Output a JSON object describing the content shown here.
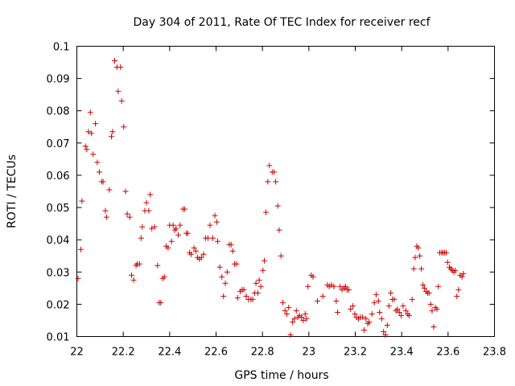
{
  "chart_data": {
    "type": "scatter",
    "title": "Day 304 of 2011, Rate Of TEC Index for receiver recf",
    "xlabel": "GPS time / hours",
    "ylabel": "ROTI / TECUs",
    "xlim": [
      22,
      23.8
    ],
    "ylim": [
      0.01,
      0.1
    ],
    "x_ticks": [
      "22",
      "22.2",
      "22.4",
      "22.6",
      "22.8",
      "23",
      "23.2",
      "23.4",
      "23.6",
      "23.8"
    ],
    "y_ticks": [
      "0.01",
      "0.02",
      "0.03",
      "0.04",
      "0.05",
      "0.06",
      "0.07",
      "0.08",
      "0.09",
      "0.1"
    ],
    "grid": false,
    "marker": "plus",
    "marker_color": "#cc0000",
    "points": [
      [
        22.005,
        0.028
      ],
      [
        22.017,
        0.037
      ],
      [
        22.022,
        0.052
      ],
      [
        22.037,
        0.069
      ],
      [
        22.043,
        0.068
      ],
      [
        22.05,
        0.0735
      ],
      [
        22.058,
        0.0795
      ],
      [
        22.063,
        0.073
      ],
      [
        22.07,
        0.0665
      ],
      [
        22.08,
        0.076
      ],
      [
        22.088,
        0.064
      ],
      [
        22.097,
        0.061
      ],
      [
        22.107,
        0.058
      ],
      [
        22.113,
        0.058
      ],
      [
        22.123,
        0.049
      ],
      [
        22.128,
        0.047
      ],
      [
        22.14,
        0.0555
      ],
      [
        22.149,
        0.072
      ],
      [
        22.154,
        0.0735
      ],
      [
        22.163,
        0.0955
      ],
      [
        22.173,
        0.0935
      ],
      [
        22.178,
        0.086
      ],
      [
        22.188,
        0.0935
      ],
      [
        22.193,
        0.083
      ],
      [
        22.202,
        0.075
      ],
      [
        22.21,
        0.055
      ],
      [
        22.217,
        0.048
      ],
      [
        22.228,
        0.047
      ],
      [
        22.236,
        0.029
      ],
      [
        22.245,
        0.0275
      ],
      [
        22.255,
        0.032
      ],
      [
        22.26,
        0.0325
      ],
      [
        22.27,
        0.0325
      ],
      [
        22.277,
        0.0405
      ],
      [
        22.282,
        0.044
      ],
      [
        22.293,
        0.049
      ],
      [
        22.3,
        0.0515
      ],
      [
        22.31,
        0.049
      ],
      [
        22.316,
        0.054
      ],
      [
        22.323,
        0.0435
      ],
      [
        22.335,
        0.044
      ],
      [
        22.348,
        0.032
      ],
      [
        22.355,
        0.0205
      ],
      [
        22.362,
        0.0205
      ],
      [
        22.37,
        0.028
      ],
      [
        22.377,
        0.0285
      ],
      [
        22.385,
        0.038
      ],
      [
        22.393,
        0.0375
      ],
      [
        22.4,
        0.0445
      ],
      [
        22.408,
        0.0395
      ],
      [
        22.415,
        0.0445
      ],
      [
        22.422,
        0.043
      ],
      [
        22.428,
        0.0435
      ],
      [
        22.437,
        0.0415
      ],
      [
        22.445,
        0.0445
      ],
      [
        22.458,
        0.0495
      ],
      [
        22.465,
        0.0495
      ],
      [
        22.472,
        0.042
      ],
      [
        22.478,
        0.042
      ],
      [
        22.486,
        0.036
      ],
      [
        22.493,
        0.0355
      ],
      [
        22.505,
        0.0375
      ],
      [
        22.513,
        0.0365
      ],
      [
        22.52,
        0.0345
      ],
      [
        22.528,
        0.034
      ],
      [
        22.537,
        0.0345
      ],
      [
        22.546,
        0.0355
      ],
      [
        22.555,
        0.0405
      ],
      [
        22.565,
        0.0405
      ],
      [
        22.574,
        0.0445
      ],
      [
        22.586,
        0.0405
      ],
      [
        22.595,
        0.0475
      ],
      [
        22.603,
        0.0455
      ],
      [
        22.607,
        0.0395
      ],
      [
        22.616,
        0.0315
      ],
      [
        22.625,
        0.0285
      ],
      [
        22.632,
        0.0225
      ],
      [
        22.64,
        0.0265
      ],
      [
        22.648,
        0.03
      ],
      [
        22.657,
        0.0385
      ],
      [
        22.665,
        0.0385
      ],
      [
        22.672,
        0.0365
      ],
      [
        22.68,
        0.0325
      ],
      [
        22.688,
        0.0325
      ],
      [
        22.693,
        0.022
      ],
      [
        22.704,
        0.024
      ],
      [
        22.712,
        0.0245
      ],
      [
        22.72,
        0.0245
      ],
      [
        22.73,
        0.0225
      ],
      [
        22.74,
        0.0215
      ],
      [
        22.75,
        0.0215
      ],
      [
        22.758,
        0.0215
      ],
      [
        22.766,
        0.0235
      ],
      [
        22.772,
        0.0265
      ],
      [
        22.78,
        0.0235
      ],
      [
        22.786,
        0.0275
      ],
      [
        22.793,
        0.0255
      ],
      [
        22.802,
        0.0305
      ],
      [
        22.808,
        0.0335
      ],
      [
        22.815,
        0.0485
      ],
      [
        22.823,
        0.058
      ],
      [
        22.83,
        0.063
      ],
      [
        22.842,
        0.061
      ],
      [
        22.85,
        0.061
      ],
      [
        22.857,
        0.058
      ],
      [
        22.866,
        0.0505
      ],
      [
        22.872,
        0.043
      ],
      [
        22.88,
        0.035
      ],
      [
        22.888,
        0.0205
      ],
      [
        22.897,
        0.018
      ],
      [
        22.905,
        0.017
      ],
      [
        22.913,
        0.019
      ],
      [
        22.921,
        0.0105
      ],
      [
        22.93,
        0.0145
      ],
      [
        22.938,
        0.0155
      ],
      [
        22.946,
        0.018
      ],
      [
        22.953,
        0.016
      ],
      [
        22.96,
        0.0165
      ],
      [
        22.968,
        0.016
      ],
      [
        22.976,
        0.015
      ],
      [
        22.984,
        0.017
      ],
      [
        22.99,
        0.0155
      ],
      [
        22.996,
        0.0255
      ],
      [
        23.01,
        0.029
      ],
      [
        23.018,
        0.0285
      ],
      [
        23.037,
        0.021
      ],
      [
        23.06,
        0.0225
      ],
      [
        23.08,
        0.026
      ],
      [
        23.088,
        0.0255
      ],
      [
        23.097,
        0.026
      ],
      [
        23.108,
        0.0255
      ],
      [
        23.118,
        0.021
      ],
      [
        23.124,
        0.0175
      ],
      [
        23.135,
        0.0255
      ],
      [
        23.143,
        0.0245
      ],
      [
        23.152,
        0.025
      ],
      [
        23.158,
        0.0255
      ],
      [
        23.165,
        0.0245
      ],
      [
        23.172,
        0.0245
      ],
      [
        23.18,
        0.0185
      ],
      [
        23.19,
        0.0195
      ],
      [
        23.198,
        0.017
      ],
      [
        23.205,
        0.016
      ],
      [
        23.214,
        0.0155
      ],
      [
        23.222,
        0.016
      ],
      [
        23.232,
        0.016
      ],
      [
        23.238,
        0.012
      ],
      [
        23.246,
        0.0155
      ],
      [
        23.254,
        0.014
      ],
      [
        23.26,
        0.0145
      ],
      [
        23.272,
        0.017
      ],
      [
        23.282,
        0.0205
      ],
      [
        23.29,
        0.023
      ],
      [
        23.3,
        0.021
      ],
      [
        23.305,
        0.0175
      ],
      [
        23.314,
        0.0155
      ],
      [
        23.322,
        0.0115
      ],
      [
        23.33,
        0.0105
      ],
      [
        23.338,
        0.0135
      ],
      [
        23.345,
        0.0195
      ],
      [
        23.353,
        0.0235
      ],
      [
        23.36,
        0.0215
      ],
      [
        23.368,
        0.0215
      ],
      [
        23.375,
        0.018
      ],
      [
        23.382,
        0.0185
      ],
      [
        23.39,
        0.0175
      ],
      [
        23.398,
        0.0165
      ],
      [
        23.406,
        0.0195
      ],
      [
        23.418,
        0.018
      ],
      [
        23.426,
        0.017
      ],
      [
        23.432,
        0.0165
      ],
      [
        23.445,
        0.0215
      ],
      [
        23.452,
        0.031
      ],
      [
        23.458,
        0.0345
      ],
      [
        23.465,
        0.038
      ],
      [
        23.472,
        0.0375
      ],
      [
        23.478,
        0.035
      ],
      [
        23.485,
        0.031
      ],
      [
        23.492,
        0.026
      ],
      [
        23.498,
        0.025
      ],
      [
        23.505,
        0.024
      ],
      [
        23.512,
        0.0235
      ],
      [
        23.518,
        0.0235
      ],
      [
        23.525,
        0.02
      ],
      [
        23.531,
        0.018
      ],
      [
        23.538,
        0.013
      ],
      [
        23.545,
        0.019
      ],
      [
        23.552,
        0.0185
      ],
      [
        23.558,
        0.0255
      ],
      [
        23.564,
        0.036
      ],
      [
        23.572,
        0.036
      ],
      [
        23.578,
        0.036
      ],
      [
        23.585,
        0.036
      ],
      [
        23.592,
        0.036
      ],
      [
        23.598,
        0.033
      ],
      [
        23.606,
        0.0315
      ],
      [
        23.612,
        0.031
      ],
      [
        23.618,
        0.0305
      ],
      [
        23.625,
        0.03
      ],
      [
        23.631,
        0.0305
      ],
      [
        23.638,
        0.0225
      ],
      [
        23.645,
        0.0245
      ],
      [
        23.652,
        0.029
      ],
      [
        23.66,
        0.0285
      ],
      [
        23.666,
        0.0295
      ]
    ]
  }
}
